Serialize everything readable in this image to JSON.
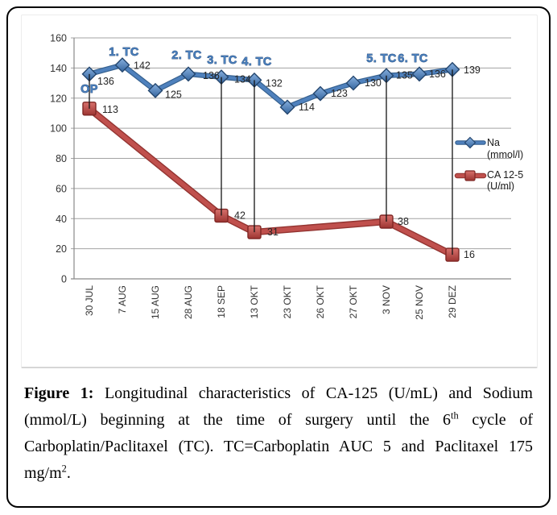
{
  "figure": {
    "caption": {
      "label": "Figure 1:",
      "part1": " Longitudinal characteristics of CA-125 (U/mL) and Sodium (mmol/L) beginning at the time of surgery until the 6",
      "sup1": "th",
      "part2": " cycle of Carboplatin/Paclitaxel (TC). TC=Carboplatin AUC 5 and Paclitaxel 175 mg/m",
      "sup2": "2",
      "part3": "."
    }
  },
  "chart_data": {
    "type": "line",
    "title": "",
    "xlabel": "",
    "ylabel": "",
    "categories": [
      "30 JUL",
      "7 AUG",
      "15 AUG",
      "28 AUG",
      "18 SEP",
      "13 OKT",
      "23 OKT",
      "26 OKT",
      "27 OKT",
      "3 NOV",
      "25 NOV",
      "29 DEZ"
    ],
    "y_ticks": [
      0,
      20,
      40,
      60,
      80,
      100,
      120,
      140,
      160
    ],
    "ylim": [
      0,
      160
    ],
    "grid": true,
    "legend_position": "right",
    "series": [
      {
        "name": "Na (mmol/l)",
        "legend_lines": [
          "Na",
          "(mmol/l)"
        ],
        "color": "#4f81bd",
        "marker": "diamond",
        "values": [
          136,
          142,
          125,
          136,
          134,
          132,
          114,
          123,
          130,
          135,
          136,
          139
        ]
      },
      {
        "name": "CA 12-5 (U/ml)",
        "legend_lines": [
          "CA 12-5",
          "(U/ml)"
        ],
        "color": "#c0504d",
        "marker": "square",
        "values": [
          113,
          null,
          null,
          null,
          42,
          31,
          null,
          null,
          null,
          38,
          null,
          16
        ]
      }
    ],
    "annotations": [
      {
        "text": "OP",
        "index": 0
      },
      {
        "text": "1. TC",
        "index": 1
      },
      {
        "text": "2. TC",
        "index": 3
      },
      {
        "text": "3. TC",
        "index": 4
      },
      {
        "text": "4. TC",
        "index": 5
      },
      {
        "text": "5. TC",
        "index": 9
      },
      {
        "text": "6. TC",
        "index": 10
      }
    ],
    "connector_indices": [
      0,
      4,
      5,
      9,
      11
    ],
    "annotation_color": "#4b80bd"
  }
}
